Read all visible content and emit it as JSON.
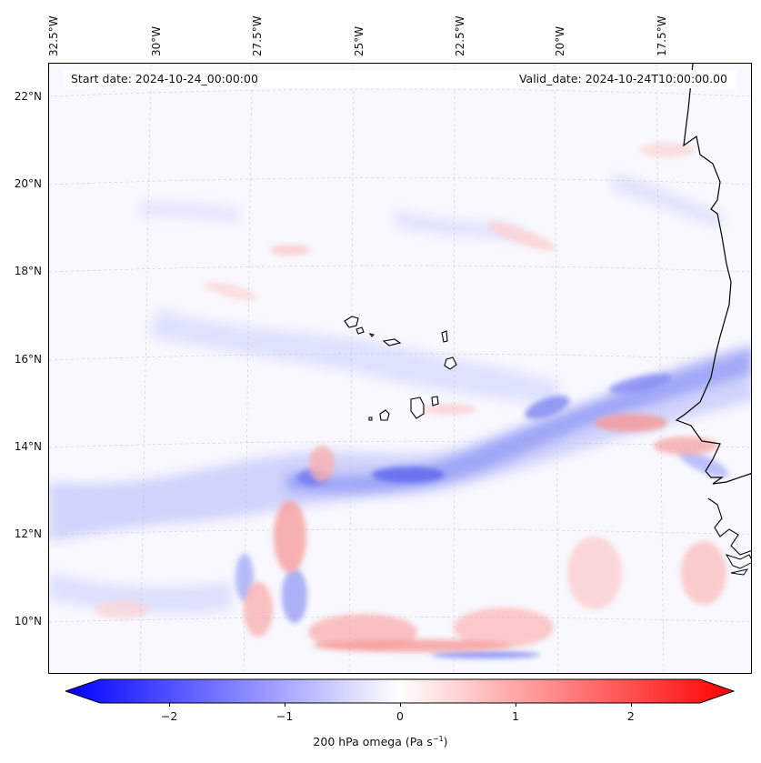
{
  "map": {
    "start_date": "Start date: 2024-10-24_00:00:00",
    "valid_date": "Valid_date: 2024-10-24T10:00:00.00",
    "lon_labels": [
      "32.5°W",
      "30°W",
      "27.5°W",
      "25°W",
      "22.5°W",
      "20°W",
      "17.5°W"
    ],
    "lat_labels": [
      "22°N",
      "20°N",
      "18°N",
      "16°N",
      "14°N",
      "12°N",
      "10°N"
    ],
    "field": "200 hPa omega",
    "colors": {
      "negative": "#0000ff",
      "zero": "#ffffff",
      "positive": "#ff0000",
      "coast": "#000000"
    }
  },
  "colorbar": {
    "ticks": [
      "−2",
      "−1",
      "0",
      "1",
      "2"
    ],
    "tick_values": [
      -2,
      -1,
      0,
      1,
      2
    ],
    "range": [
      -2.6,
      2.6
    ],
    "label_main": "200 hPa omega (Pa s",
    "label_sup": "−1",
    "label_end": ")"
  }
}
